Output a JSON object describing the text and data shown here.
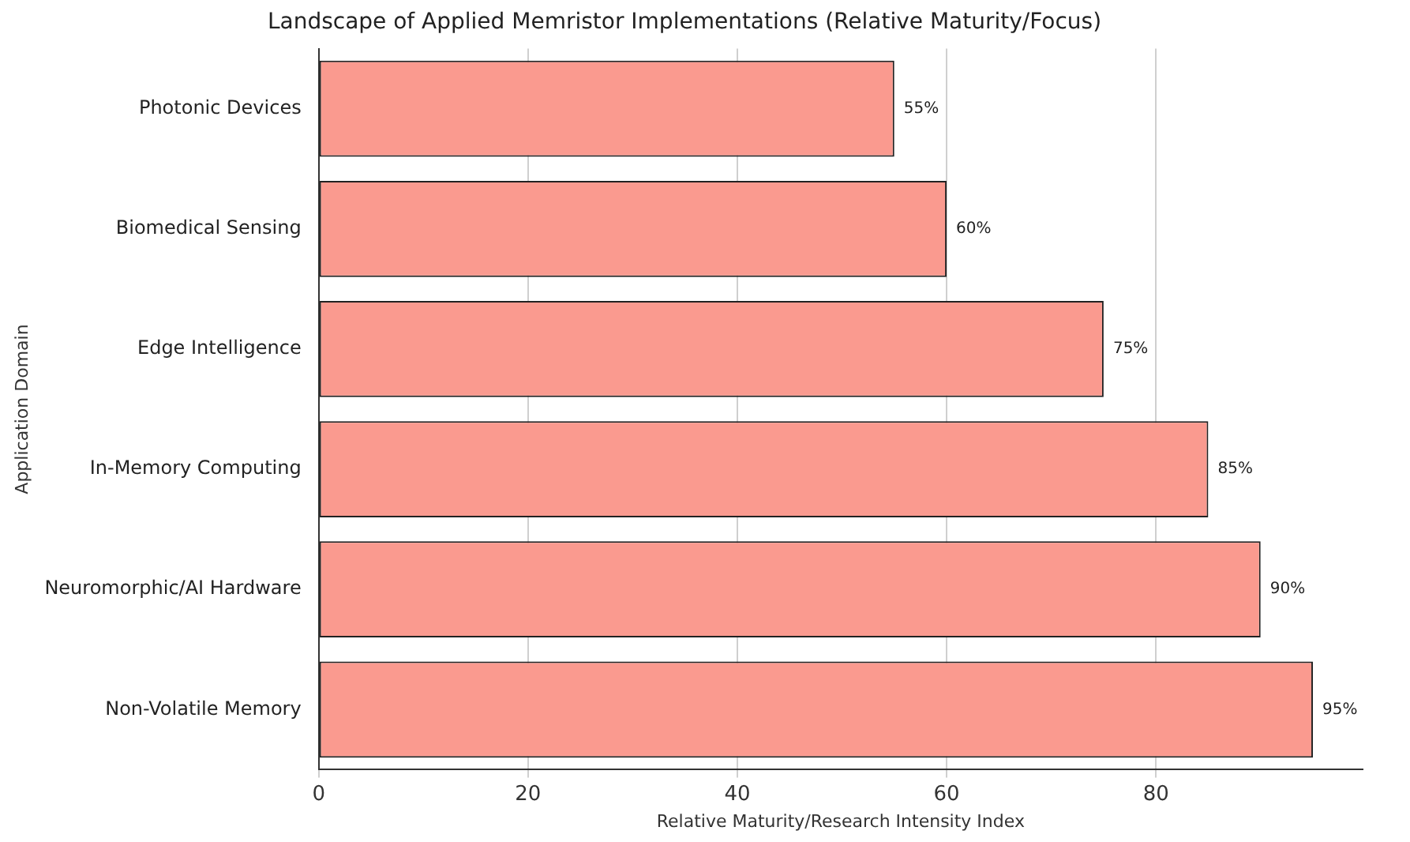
{
  "chart_data": {
    "type": "bar",
    "orientation": "horizontal",
    "title": "Landscape of Applied Memristor Implementations (Relative Maturity/Focus)",
    "xlabel": "Relative Maturity/Research Intensity Index",
    "ylabel": "Application Domain",
    "categories": [
      "Photonic Devices",
      "Biomedical Sensing",
      "Edge Intelligence",
      "In-Memory Computing",
      "Neuromorphic/AI Hardware",
      "Non-Volatile Memory"
    ],
    "values": [
      55,
      60,
      75,
      85,
      90,
      95
    ],
    "value_labels": [
      "55%",
      "60%",
      "75%",
      "85%",
      "90%",
      "95%"
    ],
    "color": "#fa9a8f",
    "xlim": [
      0,
      99.75
    ],
    "xticks": [
      0,
      20,
      40,
      60,
      80
    ],
    "grid": "x"
  }
}
